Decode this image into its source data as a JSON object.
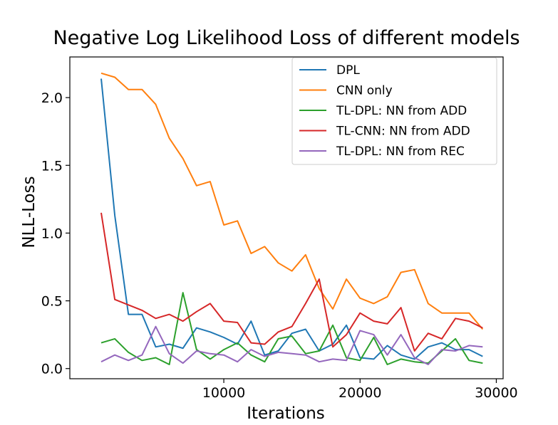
{
  "chart_data": {
    "type": "line",
    "title": "Negative Log Likelihood Loss of different models",
    "xlabel": "Iterations",
    "ylabel": "NLL-Loss",
    "xlim": [
      -1300,
      30500
    ],
    "ylim": [
      -0.075,
      2.3
    ],
    "xticks": [
      10000,
      20000,
      30000
    ],
    "yticks": [
      0.0,
      0.5,
      1.0,
      1.5,
      2.0
    ],
    "xtick_labels": [
      "10000",
      "20000",
      "30000"
    ],
    "ytick_labels": [
      "0.0",
      "0.5",
      "1.0",
      "1.5",
      "2.0"
    ],
    "grid": false,
    "legend_position": "upper right",
    "x": [
      1000,
      2000,
      3000,
      4000,
      5000,
      6000,
      7000,
      8000,
      9000,
      10000,
      11000,
      12000,
      13000,
      14000,
      15000,
      16000,
      17000,
      18000,
      19000,
      20000,
      21000,
      22000,
      23000,
      24000,
      25000,
      26000,
      27000,
      28000,
      29000
    ],
    "series": [
      {
        "name": "DPL",
        "color": "#1f77b4",
        "values": [
          2.14,
          1.13,
          0.4,
          0.4,
          0.16,
          0.18,
          0.15,
          0.3,
          0.27,
          0.23,
          0.18,
          0.35,
          0.1,
          0.13,
          0.26,
          0.29,
          0.13,
          0.18,
          0.32,
          0.08,
          0.07,
          0.17,
          0.1,
          0.07,
          0.16,
          0.19,
          0.14,
          0.14,
          0.09
        ]
      },
      {
        "name": "CNN only",
        "color": "#ff7f0e",
        "values": [
          2.18,
          2.15,
          2.06,
          2.06,
          1.95,
          1.7,
          1.55,
          1.35,
          1.38,
          1.06,
          1.09,
          0.85,
          0.9,
          0.78,
          0.72,
          0.84,
          0.59,
          0.44,
          0.66,
          0.52,
          0.48,
          0.53,
          0.71,
          0.73,
          0.48,
          0.41,
          0.41,
          0.41,
          0.29
        ]
      },
      {
        "name": "TL-DPL: NN from ADD",
        "color": "#2ca02c",
        "values": [
          0.19,
          0.22,
          0.12,
          0.06,
          0.08,
          0.03,
          0.56,
          0.14,
          0.07,
          0.14,
          0.19,
          0.1,
          0.05,
          0.22,
          0.24,
          0.11,
          0.13,
          0.32,
          0.08,
          0.06,
          0.23,
          0.03,
          0.07,
          0.05,
          0.04,
          0.13,
          0.22,
          0.06,
          0.04
        ]
      },
      {
        "name": "TL-CNN: NN from ADD",
        "color": "#d62728",
        "values": [
          1.15,
          0.51,
          0.47,
          0.43,
          0.37,
          0.4,
          0.35,
          0.42,
          0.48,
          0.35,
          0.34,
          0.19,
          0.18,
          0.27,
          0.31,
          0.48,
          0.66,
          0.16,
          0.25,
          0.41,
          0.35,
          0.33,
          0.45,
          0.13,
          0.26,
          0.22,
          0.37,
          0.35,
          0.3
        ]
      },
      {
        "name": "TL-DPL: NN from REC",
        "color": "#9467bd",
        "values": [
          0.05,
          0.1,
          0.06,
          0.1,
          0.31,
          0.11,
          0.04,
          0.13,
          0.11,
          0.1,
          0.05,
          0.14,
          0.09,
          0.12,
          0.11,
          0.1,
          0.05,
          0.07,
          0.06,
          0.28,
          0.25,
          0.1,
          0.25,
          0.08,
          0.03,
          0.14,
          0.13,
          0.17,
          0.16
        ]
      }
    ]
  }
}
